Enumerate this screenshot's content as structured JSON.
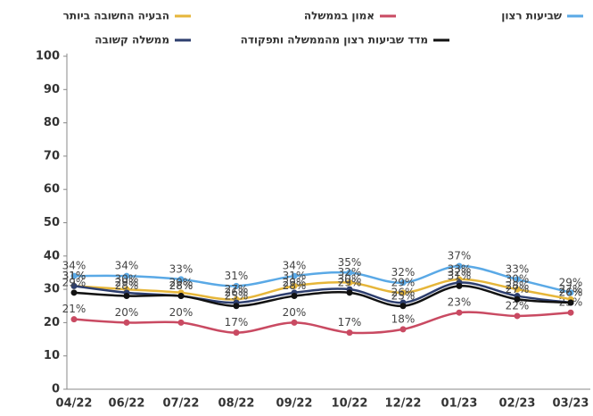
{
  "chart_data": {
    "type": "line",
    "categories": [
      "04/22",
      "06/22",
      "07/22",
      "08/22",
      "09/22",
      "10/22",
      "12/22",
      "01/23",
      "02/23",
      "03/23"
    ],
    "series": [
      {
        "name": "שביעות רצון",
        "color": "#5aa9e6",
        "values": [
          34,
          34,
          33,
          31,
          34,
          35,
          32,
          37,
          33,
          29
        ],
        "value_labels": [
          "34%",
          "34%",
          "33%",
          "31%",
          "34%",
          "35%",
          "32%",
          "37%",
          "33%",
          "29%"
        ]
      },
      {
        "name": "אמון בממשלה",
        "color": "#c94a62",
        "values": [
          21,
          20,
          20,
          17,
          20,
          17,
          18,
          23,
          22,
          23
        ],
        "value_labels": [
          "21%",
          "20%",
          "20%",
          "17%",
          "20%",
          "17%",
          "18%",
          "23%",
          "22%",
          "23%"
        ]
      },
      {
        "name": "הבעיה החשובה ביותר",
        "color": "#e6b63a",
        "values": [
          31,
          30,
          29,
          27,
          31,
          32,
          29,
          33,
          30,
          27
        ],
        "value_labels": [
          "31%",
          "30%",
          "29%",
          "27%",
          "31%",
          "32%",
          "29%",
          "33%",
          "30%",
          "27%"
        ]
      },
      {
        "name": "ממשלה קשובה",
        "color": "#2d3e6e",
        "values": [
          31,
          29,
          28,
          26,
          29,
          30,
          26,
          32,
          28,
          26
        ],
        "value_labels": [
          "31%",
          "29%",
          "28%",
          "26%",
          "29%",
          "30%",
          "26%",
          "32%",
          "28%",
          "26%"
        ]
      },
      {
        "name": "מדד שביעות רצון מהממשלה ותפקודה",
        "color": "#111111",
        "values": [
          29,
          28,
          28,
          25,
          28,
          29,
          25,
          31,
          27,
          26
        ],
        "value_labels": [
          "29%",
          "28%",
          "28%",
          "25%",
          "28%",
          "29%",
          "25%",
          "31%",
          "27%",
          "26%"
        ]
      }
    ],
    "ylim": [
      0,
      100
    ],
    "yticks": [
      0,
      10,
      20,
      30,
      40,
      50,
      60,
      70,
      80,
      90,
      100
    ],
    "grid": false
  }
}
